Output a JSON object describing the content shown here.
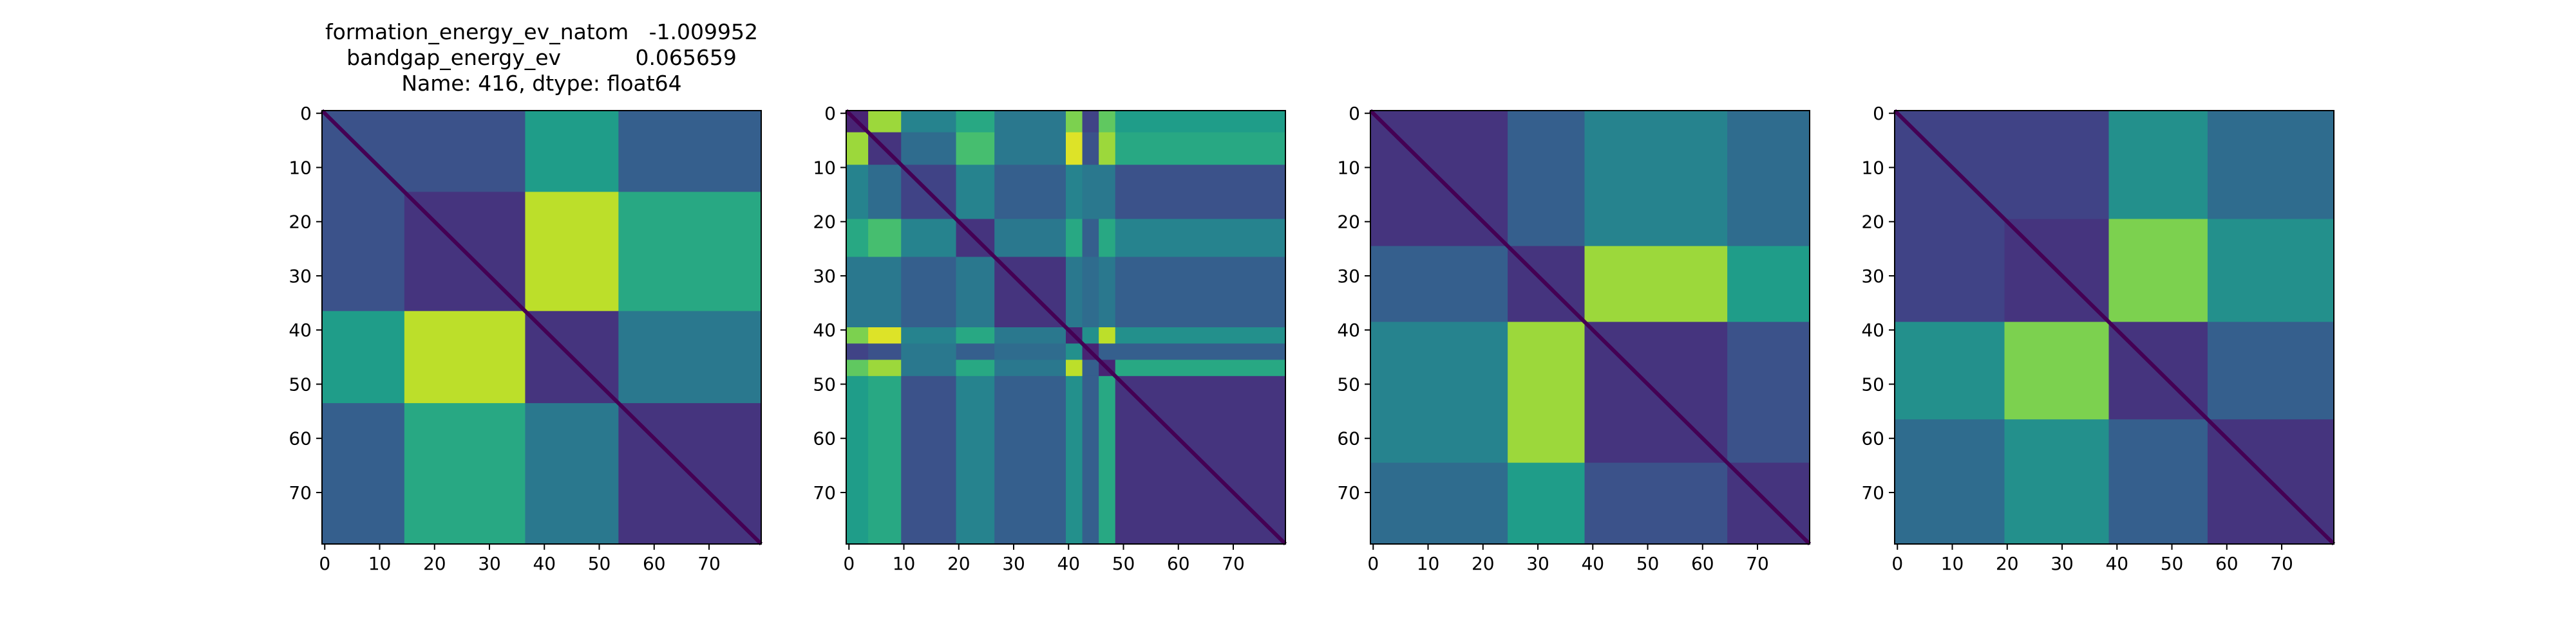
{
  "chart_data": [
    {
      "type": "heatmap",
      "title": [
        "formation_energy_ev_natom   -1.009952",
        "bandgap_energy_ev           0.065659",
        "Name: 416, dtype: float64"
      ],
      "segments": [
        0,
        15,
        37,
        54,
        80
      ],
      "values": [
        [
          0.25,
          0.25,
          0.55,
          0.3
        ],
        [
          0.15,
          0.9,
          0.6
        ],
        [
          0.15,
          0.4
        ],
        [
          0.15
        ]
      ],
      "xlim": [
        -0.5,
        79.5
      ],
      "ylim": [
        79.5,
        -0.5
      ],
      "xticks": [
        0,
        10,
        20,
        30,
        40,
        50,
        60,
        70
      ],
      "yticks": [
        0,
        10,
        20,
        30,
        40,
        50,
        60,
        70
      ],
      "colormap": "viridis",
      "clim": [
        0,
        1
      ]
    },
    {
      "type": "heatmap",
      "segments": [
        0,
        4,
        10,
        20,
        27,
        40,
        43,
        46,
        49,
        80
      ],
      "values": [
        [
          0.1,
          0.85,
          0.45,
          0.6,
          0.4,
          0.8,
          0.2,
          0.75,
          0.55
        ],
        [
          0.15,
          0.35,
          0.7,
          0.4,
          0.95,
          0.25,
          0.85,
          0.6
        ],
        [
          0.2,
          0.45,
          0.3,
          0.45,
          0.4,
          0.4,
          0.25
        ],
        [
          0.15,
          0.4,
          0.6,
          0.3,
          0.6,
          0.45
        ],
        [
          0.15,
          0.4,
          0.35,
          0.4,
          0.3
        ],
        [
          0.1,
          0.5,
          0.9,
          0.5
        ],
        [
          0.1,
          0.3,
          0.3
        ],
        [
          0.1,
          0.6
        ],
        [
          0.15
        ]
      ],
      "xlim": [
        -0.5,
        79.5
      ],
      "ylim": [
        79.5,
        -0.5
      ],
      "xticks": [
        0,
        10,
        20,
        30,
        40,
        50,
        60,
        70
      ],
      "yticks": [
        0,
        10,
        20,
        30,
        40,
        50,
        60,
        70
      ],
      "colormap": "viridis",
      "clim": [
        0,
        1
      ]
    },
    {
      "type": "heatmap",
      "segments": [
        0,
        25,
        39,
        65,
        80
      ],
      "values": [
        [
          0.15,
          0.3,
          0.45,
          0.35
        ],
        [
          0.15,
          0.85,
          0.55
        ],
        [
          0.15,
          0.25
        ],
        [
          0.15
        ]
      ],
      "xlim": [
        -0.5,
        79.5
      ],
      "ylim": [
        79.5,
        -0.5
      ],
      "xticks": [
        0,
        10,
        20,
        30,
        40,
        50,
        60,
        70
      ],
      "yticks": [
        0,
        10,
        20,
        30,
        40,
        50,
        60,
        70
      ],
      "colormap": "viridis",
      "clim": [
        0,
        1
      ]
    },
    {
      "type": "heatmap",
      "segments": [
        0,
        20,
        39,
        57,
        80
      ],
      "values": [
        [
          0.2,
          0.2,
          0.5,
          0.35
        ],
        [
          0.15,
          0.8,
          0.5
        ],
        [
          0.15,
          0.3
        ],
        [
          0.15
        ]
      ],
      "xlim": [
        -0.5,
        79.5
      ],
      "ylim": [
        79.5,
        -0.5
      ],
      "xticks": [
        0,
        10,
        20,
        30,
        40,
        50,
        60,
        70
      ],
      "yticks": [
        0,
        10,
        20,
        30,
        40,
        50,
        60,
        70
      ],
      "colormap": "viridis",
      "clim": [
        0,
        1
      ]
    }
  ]
}
